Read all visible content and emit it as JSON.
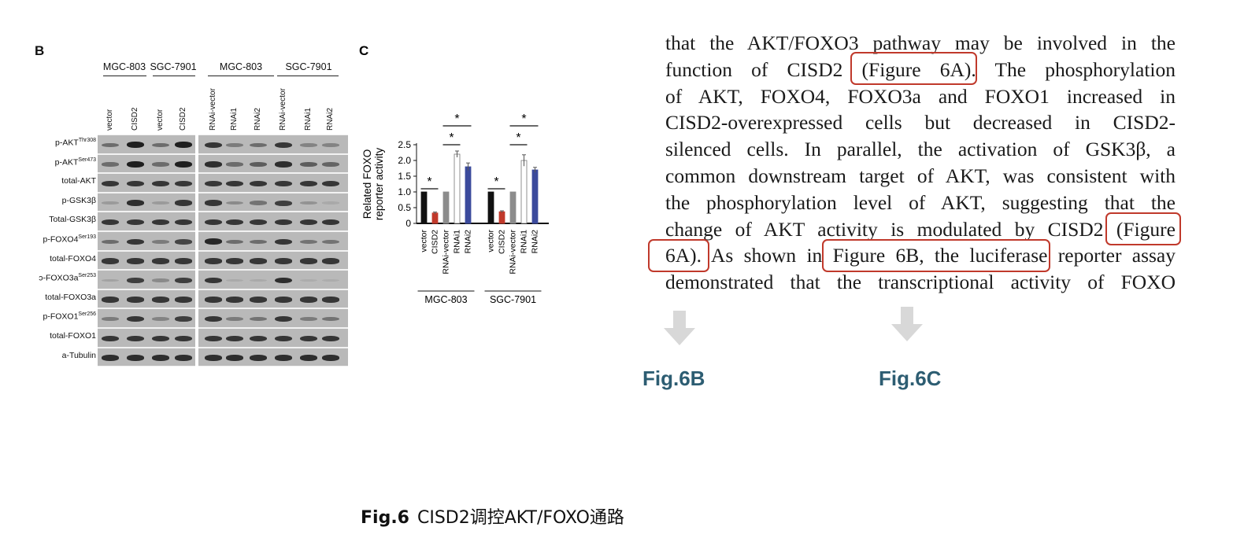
{
  "panel_b": {
    "letter": "B",
    "overexpression_groups": [
      "MGC-803",
      "SGC-7901"
    ],
    "rnai_groups": [
      "MGC-803",
      "SGC-7901"
    ],
    "overexpression_lanes": [
      "vector",
      "CISD2",
      "vector",
      "CISD2"
    ],
    "rnai_lanes": [
      "RNAi-vector",
      "RNAi1",
      "RNAi2",
      "RNAi-vector",
      "RNAi1",
      "RNAi2"
    ],
    "rows": [
      {
        "main": "p-AKT",
        "sup": "Thr308"
      },
      {
        "main": "p-AKT",
        "sup": "Ser473"
      },
      {
        "main": "total-AKT",
        "sup": ""
      },
      {
        "main": "p-GSK3β",
        "sup": ""
      },
      {
        "main": "Total-GSK3β",
        "sup": ""
      },
      {
        "main": "p-FOXO4",
        "sup": "Ser193"
      },
      {
        "main": "total-FOXO4",
        "sup": ""
      },
      {
        "main": "ɔ-FOXO3a",
        "sup": "Ser253"
      },
      {
        "main": "total-FOXO3a",
        "sup": ""
      },
      {
        "main": "p-FOXO1",
        "sup": "Ser256"
      },
      {
        "main": "total-FOXO1",
        "sup": ""
      },
      {
        "main": "a-Tubulin",
        "sup": ""
      }
    ],
    "band_intensity_left": [
      [
        0.5,
        1.0,
        0.5,
        1.0
      ],
      [
        0.5,
        1.0,
        0.5,
        1.0
      ],
      [
        0.85,
        0.85,
        0.85,
        0.85
      ],
      [
        0.2,
        0.9,
        0.2,
        0.85
      ],
      [
        0.85,
        0.85,
        0.85,
        0.85
      ],
      [
        0.5,
        0.85,
        0.4,
        0.75
      ],
      [
        0.85,
        0.85,
        0.85,
        0.85
      ],
      [
        0.15,
        0.8,
        0.3,
        0.8
      ],
      [
        0.85,
        0.85,
        0.85,
        0.85
      ],
      [
        0.4,
        0.85,
        0.35,
        0.8
      ],
      [
        0.85,
        0.85,
        0.85,
        0.85
      ],
      [
        0.9,
        0.9,
        0.9,
        0.9
      ]
    ],
    "band_intensity_right": [
      [
        0.85,
        0.4,
        0.5,
        0.85,
        0.35,
        0.35
      ],
      [
        0.9,
        0.5,
        0.6,
        0.9,
        0.6,
        0.55
      ],
      [
        0.85,
        0.85,
        0.85,
        0.85,
        0.85,
        0.85
      ],
      [
        0.85,
        0.3,
        0.45,
        0.8,
        0.25,
        0.1
      ],
      [
        0.85,
        0.85,
        0.85,
        0.85,
        0.85,
        0.85
      ],
      [
        0.95,
        0.5,
        0.5,
        0.85,
        0.45,
        0.45
      ],
      [
        0.85,
        0.85,
        0.85,
        0.85,
        0.85,
        0.85
      ],
      [
        0.85,
        0.1,
        0.1,
        0.9,
        0.05,
        0.05
      ],
      [
        0.85,
        0.85,
        0.85,
        0.85,
        0.85,
        0.85
      ],
      [
        0.85,
        0.4,
        0.45,
        0.85,
        0.4,
        0.45
      ],
      [
        0.85,
        0.85,
        0.85,
        0.85,
        0.85,
        0.85
      ],
      [
        0.9,
        0.9,
        0.9,
        0.9,
        0.9,
        0.9
      ]
    ]
  },
  "chart_data": {
    "type": "bar",
    "panel_letter": "C",
    "ylabel": "Related FOXO reporter activity",
    "ylim": [
      0,
      2.5
    ],
    "yticks": [
      0,
      0.5,
      1.0,
      1.5,
      2.0,
      2.5
    ],
    "ytick_labels": [
      "0",
      "0.5",
      "1.0",
      "1.5",
      "2.0",
      "2.5"
    ],
    "groups": [
      {
        "name": "MGC-803",
        "categories": [
          "vector",
          "CISD2",
          "RNAi-vector",
          "RNAi1",
          "RNAi2"
        ],
        "values": [
          1.0,
          0.33,
          1.0,
          2.2,
          1.8
        ],
        "errors": [
          0.0,
          0.03,
          0.0,
          0.1,
          0.12
        ],
        "colors": [
          "#111111",
          "#c0392b",
          "#8c8c8c",
          "#ffffff",
          "#3b4a9c"
        ],
        "significance": [
          "*",
          "*",
          "*"
        ]
      },
      {
        "name": "SGC-7901",
        "categories": [
          "vector",
          "CISD2",
          "RNAi-vector",
          "RNAi1",
          "RNAi2"
        ],
        "values": [
          1.0,
          0.37,
          1.0,
          2.0,
          1.7
        ],
        "errors": [
          0.0,
          0.03,
          0.0,
          0.18,
          0.08
        ],
        "colors": [
          "#111111",
          "#c0392b",
          "#8c8c8c",
          "#ffffff",
          "#3b4a9c"
        ],
        "significance": [
          "*",
          "*",
          "*"
        ]
      }
    ]
  },
  "paper_text": {
    "lines": [
      "that the AKT/FOXO3 pathway may be involved in the",
      "function of CISD2 (Figure 6A). The phosphorylation",
      "of AKT, FOXO4, FOXO3a and FOXO1 increased in",
      "CISD2-overexpressed cells but decreased in CISD2-",
      "silenced cells. In parallel, the activation of GSK3β, a",
      "common downstream target of AKT, was consistent with",
      "the phosphorylation level of AKT, suggesting that the",
      "change of AKT activity is modulated by CISD2 (Figure",
      "6A). As shown in Figure 6B, the luciferase reporter assay",
      "demonstrated that the transcriptional activity of FOXO"
    ]
  },
  "fig_labels": [
    "Fig.6B",
    "Fig.6C"
  ],
  "caption": {
    "prefix": "Fig.6",
    "text": "CISD2调控AKT/FOXO通路"
  },
  "colors": {
    "highlight": "#c0392b",
    "fig_label": "#2d5d72",
    "arrow": "#d8d8d8"
  },
  "icons": [
    "down-arrow-icon",
    "down-arrow-icon"
  ]
}
